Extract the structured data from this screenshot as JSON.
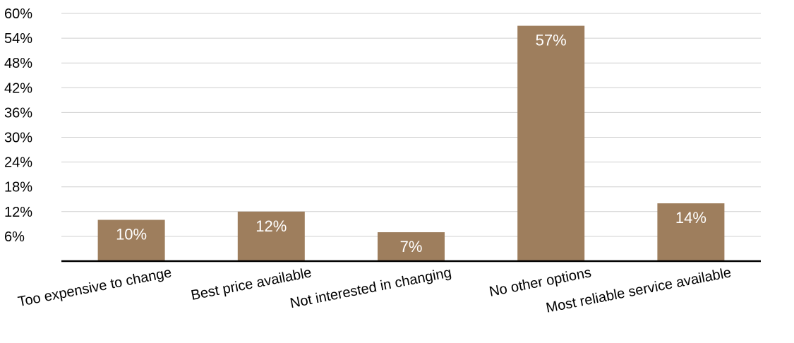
{
  "chart_data": {
    "type": "bar",
    "categories": [
      "Too expensive to change",
      "Best price available",
      "Not interested in changing",
      "No other options",
      "Most reliable service available"
    ],
    "values": [
      10,
      12,
      7,
      57,
      14
    ],
    "data_labels": [
      "10%",
      "12%",
      "7%",
      "57%",
      "14%"
    ],
    "ylim": [
      0,
      60
    ],
    "yticks": [
      6,
      12,
      18,
      24,
      30,
      36,
      42,
      48,
      54,
      60
    ],
    "ytick_labels": [
      "6%",
      "12%",
      "18%",
      "24%",
      "30%",
      "36%",
      "42%",
      "48%",
      "54%",
      "60%"
    ],
    "grid": true,
    "legend": "none",
    "title": "",
    "xlabel": "",
    "ylabel": "",
    "bar_color": "#9e7e5d",
    "label_color": "#ffffff"
  }
}
